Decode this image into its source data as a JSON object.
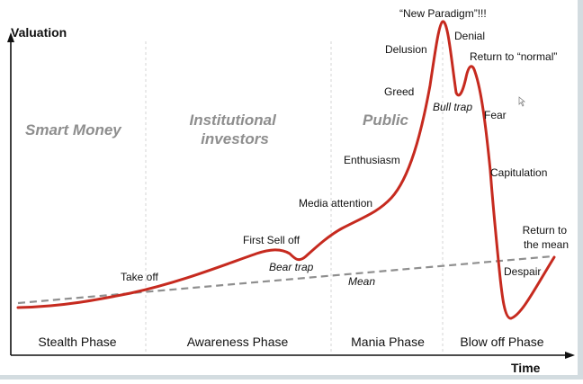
{
  "axes": {
    "y_label": "Valuation",
    "x_label": "Time"
  },
  "zones": [
    {
      "id": "smart-money",
      "lines": [
        "Smart Money"
      ]
    },
    {
      "id": "institutional-investors",
      "lines": [
        "Institutional",
        "investors"
      ]
    },
    {
      "id": "public",
      "lines": [
        "Public"
      ]
    }
  ],
  "phases": [
    {
      "id": "stealth",
      "label": "Stealth Phase"
    },
    {
      "id": "awareness",
      "label": "Awareness Phase"
    },
    {
      "id": "mania",
      "label": "Mania Phase"
    },
    {
      "id": "blow-off",
      "label": "Blow off Phase"
    }
  ],
  "annotations": [
    {
      "id": "take-off",
      "lines": [
        "Take off"
      ],
      "italic": false
    },
    {
      "id": "first-sell-off",
      "lines": [
        "First Sell off"
      ],
      "italic": false
    },
    {
      "id": "bear-trap",
      "lines": [
        "Bear trap"
      ],
      "italic": true
    },
    {
      "id": "media-attention",
      "lines": [
        "Media attention"
      ],
      "italic": false
    },
    {
      "id": "enthusiasm",
      "lines": [
        "Enthusiasm"
      ],
      "italic": false
    },
    {
      "id": "greed",
      "lines": [
        "Greed"
      ],
      "italic": false
    },
    {
      "id": "delusion",
      "lines": [
        "Delusion"
      ],
      "italic": false
    },
    {
      "id": "new-paradigm",
      "lines": [
        "“New Paradigm”!!!"
      ],
      "italic": false
    },
    {
      "id": "denial",
      "lines": [
        "Denial"
      ],
      "italic": false
    },
    {
      "id": "return-to-normal",
      "lines": [
        "Return to “normal”"
      ],
      "italic": false
    },
    {
      "id": "bull-trap",
      "lines": [
        "Bull trap"
      ],
      "italic": true
    },
    {
      "id": "fear",
      "lines": [
        "Fear"
      ],
      "italic": false
    },
    {
      "id": "capitulation",
      "lines": [
        "Capitulation"
      ],
      "italic": false
    },
    {
      "id": "return-to-the-mean",
      "lines": [
        "Return to",
        "the mean"
      ],
      "italic": false
    },
    {
      "id": "despair",
      "lines": [
        "Despair"
      ],
      "italic": false
    },
    {
      "id": "mean",
      "lines": [
        "Mean"
      ],
      "italic": true
    }
  ],
  "colors": {
    "curve": "#c62a1f",
    "mean_line": "#8f8f8f",
    "phase_divider": "#d6d6d6",
    "axis": "#111111",
    "zone_text": "#8e8e8e"
  }
}
